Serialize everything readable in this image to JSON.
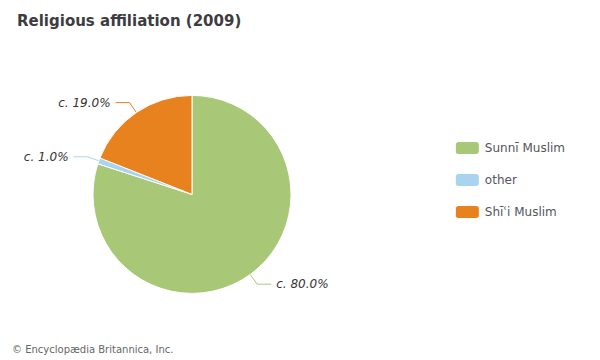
{
  "chart_data": {
    "type": "pie",
    "title": "Religious affiliation (2009)",
    "categories": [
      "Sunnī Muslim",
      "other",
      "Shīʿi Muslim"
    ],
    "values": [
      80.0,
      1.0,
      19.0
    ],
    "value_labels": [
      "c. 80.0%",
      "c. 1.0%",
      "c. 19.0%"
    ],
    "colors": [
      "#a8c878",
      "#a8d4f0",
      "#e8821e"
    ],
    "data_labels": true,
    "legend": "right",
    "annotations": [
      "© Encyclopædia Britannica, Inc."
    ]
  }
}
